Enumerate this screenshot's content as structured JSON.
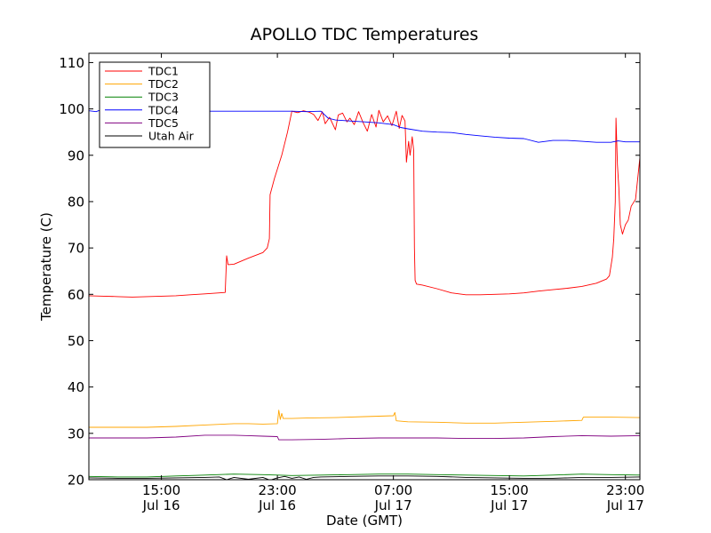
{
  "chart_data": {
    "type": "line",
    "title": "APOLLO TDC Temperatures",
    "xlabel": "Date (GMT)",
    "ylabel": "Temperature (C)",
    "x_units": "hours since Jul 16 10:00 GMT",
    "xlim": [
      0,
      38
    ],
    "ylim": [
      20,
      112
    ],
    "yticks": [
      20,
      30,
      40,
      50,
      60,
      70,
      80,
      90,
      100,
      110
    ],
    "xticks": [
      {
        "x": 5,
        "line1": "15:00",
        "line2": "Jul 16"
      },
      {
        "x": 13,
        "line1": "23:00",
        "line2": "Jul 16"
      },
      {
        "x": 21,
        "line1": "07:00",
        "line2": "Jul 17"
      },
      {
        "x": 29,
        "line1": "15:00",
        "line2": "Jul 17"
      },
      {
        "x": 37,
        "line1": "23:00",
        "line2": "Jul 17"
      }
    ],
    "grid": false,
    "legend_position": "top-left",
    "series": [
      {
        "name": "TDC1",
        "color": "#ff0000",
        "points": [
          [
            0,
            59.7
          ],
          [
            1,
            59.6
          ],
          [
            2,
            59.5
          ],
          [
            3,
            59.4
          ],
          [
            4,
            59.5
          ],
          [
            5,
            59.6
          ],
          [
            6,
            59.7
          ],
          [
            7,
            59.9
          ],
          [
            8,
            60.1
          ],
          [
            9,
            60.3
          ],
          [
            9.4,
            60.4
          ],
          [
            9.5,
            68.3
          ],
          [
            9.6,
            66.4
          ],
          [
            10,
            66.5
          ],
          [
            11,
            67.8
          ],
          [
            12,
            69
          ],
          [
            12.3,
            70
          ],
          [
            12.45,
            72
          ],
          [
            12.5,
            81.5
          ],
          [
            12.8,
            85
          ],
          [
            13.3,
            90
          ],
          [
            13.7,
            95
          ],
          [
            14,
            99.5
          ],
          [
            14.4,
            99.2
          ],
          [
            14.8,
            99.6
          ],
          [
            15.2,
            99.3
          ],
          [
            15.5,
            98.8
          ],
          [
            15.8,
            97.5
          ],
          [
            16.1,
            99.4
          ],
          [
            16.3,
            96.8
          ],
          [
            16.6,
            98.2
          ],
          [
            17,
            95.5
          ],
          [
            17.2,
            98.7
          ],
          [
            17.5,
            99.1
          ],
          [
            17.8,
            97.2
          ],
          [
            18,
            98
          ],
          [
            18.3,
            96.6
          ],
          [
            18.6,
            99.4
          ],
          [
            18.9,
            97.1
          ],
          [
            19.2,
            95.2
          ],
          [
            19.5,
            98.8
          ],
          [
            19.8,
            96.1
          ],
          [
            20,
            99.7
          ],
          [
            20.3,
            97.2
          ],
          [
            20.6,
            98.5
          ],
          [
            20.9,
            96.4
          ],
          [
            21.2,
            99.5
          ],
          [
            21.4,
            95.8
          ],
          [
            21.6,
            98.6
          ],
          [
            21.8,
            97.4
          ],
          [
            21.9,
            88.5
          ],
          [
            22.05,
            93
          ],
          [
            22.15,
            90
          ],
          [
            22.3,
            94
          ],
          [
            22.4,
            91
          ],
          [
            22.45,
            70
          ],
          [
            22.5,
            63
          ],
          [
            22.6,
            62.2
          ],
          [
            23,
            62
          ],
          [
            24,
            61.2
          ],
          [
            25,
            60.3
          ],
          [
            26,
            59.9
          ],
          [
            27,
            59.9
          ],
          [
            28,
            60
          ],
          [
            29,
            60.1
          ],
          [
            30,
            60.3
          ],
          [
            31,
            60.7
          ],
          [
            32,
            61
          ],
          [
            33,
            61.3
          ],
          [
            34,
            61.7
          ],
          [
            35,
            62.4
          ],
          [
            35.7,
            63.3
          ],
          [
            35.9,
            64
          ],
          [
            36.1,
            68
          ],
          [
            36.2,
            72
          ],
          [
            36.3,
            80
          ],
          [
            36.35,
            98
          ],
          [
            36.45,
            88
          ],
          [
            36.55,
            83
          ],
          [
            36.65,
            75
          ],
          [
            36.8,
            73
          ],
          [
            37,
            75
          ],
          [
            37.2,
            76
          ],
          [
            37.4,
            79
          ],
          [
            37.7,
            80.5
          ],
          [
            38,
            89.5
          ]
        ]
      },
      {
        "name": "TDC2",
        "color": "#ffa500",
        "points": [
          [
            0,
            31.3
          ],
          [
            2,
            31.3
          ],
          [
            4,
            31.3
          ],
          [
            6,
            31.5
          ],
          [
            8,
            31.8
          ],
          [
            10,
            32.1
          ],
          [
            11,
            32.1
          ],
          [
            12,
            32
          ],
          [
            13,
            32.1
          ],
          [
            13.1,
            35
          ],
          [
            13.2,
            33
          ],
          [
            13.3,
            34.3
          ],
          [
            13.4,
            33.2
          ],
          [
            14,
            33.2
          ],
          [
            15,
            33.3
          ],
          [
            17,
            33.4
          ],
          [
            19,
            33.6
          ],
          [
            20,
            33.7
          ],
          [
            21,
            33.8
          ],
          [
            21.1,
            34.5
          ],
          [
            21.2,
            32.7
          ],
          [
            22,
            32.5
          ],
          [
            24,
            32.4
          ],
          [
            26,
            32.2
          ],
          [
            28,
            32.2
          ],
          [
            30,
            32.4
          ],
          [
            32,
            32.6
          ],
          [
            34,
            32.8
          ],
          [
            34.1,
            33.5
          ],
          [
            36,
            33.5
          ],
          [
            38,
            33.4
          ]
        ]
      },
      {
        "name": "TDC3",
        "color": "#008000",
        "points": [
          [
            0,
            20.7
          ],
          [
            2,
            20.6
          ],
          [
            4,
            20.6
          ],
          [
            6,
            20.8
          ],
          [
            8,
            21
          ],
          [
            10,
            21.2
          ],
          [
            12,
            21.1
          ],
          [
            13,
            21
          ],
          [
            14,
            20.9
          ],
          [
            16,
            21
          ],
          [
            18,
            21.1
          ],
          [
            20,
            21.2
          ],
          [
            22,
            21.2
          ],
          [
            24,
            21.1
          ],
          [
            26,
            21
          ],
          [
            28,
            20.9
          ],
          [
            30,
            20.8
          ],
          [
            32,
            21
          ],
          [
            34,
            21.2
          ],
          [
            36,
            21.1
          ],
          [
            38,
            21
          ]
        ]
      },
      {
        "name": "TDC4",
        "color": "#0000ff",
        "points": [
          [
            0,
            99.6
          ],
          [
            0.5,
            99.4
          ],
          [
            1,
            100
          ],
          [
            1.5,
            99.7
          ],
          [
            2,
            99.5
          ],
          [
            4,
            99.5
          ],
          [
            6,
            99.5
          ],
          [
            8,
            99.5
          ],
          [
            10,
            99.5
          ],
          [
            12,
            99.5
          ],
          [
            14,
            99.5
          ],
          [
            15,
            99.4
          ],
          [
            16,
            99.5
          ],
          [
            16.5,
            98
          ],
          [
            17,
            97.6
          ],
          [
            18,
            97.4
          ],
          [
            19,
            97.2
          ],
          [
            20,
            97
          ],
          [
            21,
            96.6
          ],
          [
            21.5,
            96
          ],
          [
            22,
            95.7
          ],
          [
            23,
            95.2
          ],
          [
            24,
            95
          ],
          [
            25,
            94.9
          ],
          [
            26,
            94.5
          ],
          [
            27,
            94.2
          ],
          [
            28,
            93.9
          ],
          [
            29,
            93.7
          ],
          [
            30,
            93.6
          ],
          [
            31,
            92.8
          ],
          [
            32,
            93.2
          ],
          [
            33,
            93.2
          ],
          [
            34,
            93
          ],
          [
            35,
            92.8
          ],
          [
            36,
            92.8
          ],
          [
            36.5,
            93.1
          ],
          [
            37,
            92.9
          ],
          [
            38,
            92.9
          ]
        ]
      },
      {
        "name": "TDC5",
        "color": "#800080",
        "points": [
          [
            0,
            29
          ],
          [
            2,
            29
          ],
          [
            4,
            29
          ],
          [
            6,
            29.2
          ],
          [
            8,
            29.6
          ],
          [
            10,
            29.6
          ],
          [
            11,
            29.5
          ],
          [
            12,
            29.4
          ],
          [
            13,
            29.3
          ],
          [
            13.1,
            28.6
          ],
          [
            14,
            28.6
          ],
          [
            16,
            28.7
          ],
          [
            18,
            28.9
          ],
          [
            20,
            29
          ],
          [
            22,
            29
          ],
          [
            24,
            29
          ],
          [
            26,
            28.9
          ],
          [
            28,
            28.9
          ],
          [
            30,
            29
          ],
          [
            32,
            29.3
          ],
          [
            34,
            29.5
          ],
          [
            36,
            29.4
          ],
          [
            38,
            29.5
          ]
        ]
      },
      {
        "name": "Utah Air",
        "color": "#000000",
        "points": [
          [
            0,
            20.4
          ],
          [
            2,
            20.3
          ],
          [
            4,
            20.3
          ],
          [
            6,
            20.4
          ],
          [
            8,
            20.5
          ],
          [
            9,
            20.6
          ],
          [
            9.5,
            20
          ],
          [
            10,
            20.5
          ],
          [
            11,
            20.1
          ],
          [
            12,
            20.5
          ],
          [
            12.5,
            19.9
          ],
          [
            13,
            20.4
          ],
          [
            13.5,
            20.7
          ],
          [
            14,
            20.3
          ],
          [
            14.5,
            20.6
          ],
          [
            15,
            20.1
          ],
          [
            15.5,
            20.5
          ],
          [
            16,
            20.6
          ],
          [
            18,
            20.7
          ],
          [
            20,
            20.8
          ],
          [
            22,
            20.8
          ],
          [
            24,
            20.7
          ],
          [
            26,
            20.5
          ],
          [
            28,
            20.4
          ],
          [
            30,
            20.3
          ],
          [
            32,
            20.3
          ],
          [
            33,
            20.4
          ],
          [
            34,
            20.5
          ],
          [
            36,
            20.5
          ],
          [
            38,
            20.6
          ]
        ]
      }
    ]
  }
}
